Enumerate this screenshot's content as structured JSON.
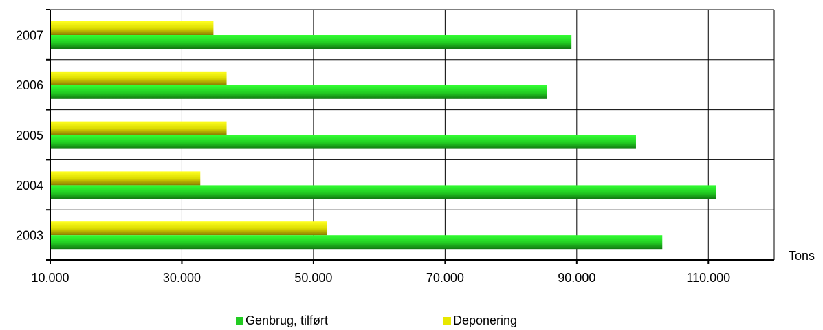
{
  "chart_data": {
    "type": "bar",
    "orientation": "horizontal",
    "categories": [
      "2003",
      "2004",
      "2005",
      "2006",
      "2007"
    ],
    "series": [
      {
        "name": "Genbrug, tilført",
        "values": [
          103000,
          111200,
          99000,
          85500,
          89200
        ],
        "color": "#22dd22"
      },
      {
        "name": "Deponering",
        "values": [
          52000,
          32800,
          36800,
          36800,
          34800
        ],
        "color": "#e8e800"
      }
    ],
    "xlabel": "Tons",
    "xlim": [
      10000,
      120000
    ],
    "xticks": [
      10000,
      30000,
      50000,
      70000,
      90000,
      110000
    ],
    "xtick_labels": [
      "10.000",
      "30.000",
      "50.000",
      "70.000",
      "90.000",
      "110.000"
    ],
    "grid": true,
    "legend_position": "bottom"
  }
}
